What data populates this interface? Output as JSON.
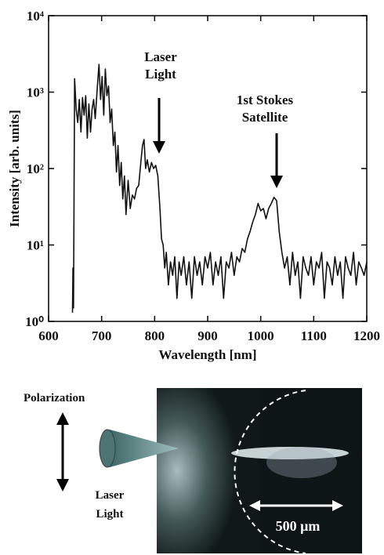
{
  "chart_data": {
    "type": "line",
    "x_label": "Wavelength [nm]",
    "y_label": "Intensity [arb. units]",
    "log_y": true,
    "xlim": [
      600,
      1200
    ],
    "xticks": [
      600,
      700,
      800,
      900,
      1000,
      1100,
      1200
    ],
    "ylim": [
      1,
      10000
    ],
    "yticks": [
      {
        "value": 1,
        "label": "10⁰"
      },
      {
        "value": 10,
        "label": "10¹"
      },
      {
        "value": 100,
        "label": "10²"
      },
      {
        "value": 1000,
        "label": "10³"
      },
      {
        "value": 10000,
        "label": "10⁴"
      }
    ],
    "annotations": [
      {
        "lines": [
          "Laser",
          "Light"
        ]
      },
      {
        "lines": [
          "1st Stokes",
          "Satellite"
        ]
      }
    ],
    "series": [
      {
        "color": "#111111",
        "x": [
          645,
          646,
          647,
          649,
          652,
          655,
          658,
          661,
          664,
          667,
          670,
          673,
          676,
          679,
          682,
          685,
          688,
          692,
          695,
          698,
          701,
          704,
          707,
          710,
          713,
          716,
          719,
          722,
          725,
          728,
          731,
          734,
          737,
          740,
          743,
          746,
          750,
          754,
          758,
          762,
          766,
          770,
          774,
          777,
          780,
          783,
          786,
          790,
          794,
          798,
          802,
          806,
          810,
          813,
          816,
          819,
          822,
          826,
          830,
          834,
          838,
          842,
          846,
          850,
          855,
          860,
          865,
          870,
          875,
          880,
          885,
          890,
          895,
          900,
          905,
          910,
          915,
          920,
          925,
          930,
          935,
          940,
          945,
          950,
          955,
          960,
          965,
          970,
          975,
          980,
          985,
          990,
          995,
          1000,
          1005,
          1010,
          1015,
          1020,
          1025,
          1030,
          1035,
          1040,
          1045,
          1050,
          1055,
          1060,
          1065,
          1070,
          1075,
          1080,
          1085,
          1090,
          1095,
          1100,
          1105,
          1110,
          1115,
          1120,
          1125,
          1130,
          1135,
          1140,
          1145,
          1150,
          1155,
          1160,
          1165,
          1170,
          1175,
          1180,
          1185,
          1190,
          1195,
          1200
        ],
        "values": [
          1.3,
          5,
          1.5,
          1500,
          600,
          400,
          800,
          300,
          850,
          500,
          900,
          250,
          700,
          300,
          600,
          800,
          450,
          1200,
          2300,
          800,
          1600,
          500,
          2000,
          900,
          1200,
          400,
          600,
          200,
          300,
          90,
          200,
          60,
          120,
          40,
          80,
          25,
          70,
          30,
          45,
          40,
          55,
          60,
          120,
          200,
          240,
          100,
          130,
          90,
          120,
          100,
          110,
          80,
          30,
          12,
          10,
          5,
          8,
          3,
          6,
          4,
          7,
          2,
          6,
          4,
          7,
          3,
          6,
          2,
          7,
          4,
          6,
          3,
          7,
          5,
          8,
          3,
          6,
          4,
          7,
          2,
          6,
          5,
          8,
          4,
          7,
          6,
          9,
          8,
          12,
          15,
          20,
          25,
          35,
          28,
          30,
          22,
          30,
          35,
          42,
          38,
          15,
          8,
          5,
          7,
          3,
          8,
          4,
          6,
          2,
          7,
          5,
          4,
          7,
          3,
          6,
          5,
          8,
          2,
          6,
          5,
          3,
          7,
          4,
          6,
          2,
          7,
          5,
          4,
          8,
          3,
          6,
          5,
          4,
          6
        ]
      }
    ]
  },
  "diagram": {
    "polarization": "Polarization",
    "laser_light": [
      "Laser",
      "Light"
    ],
    "scale_bar": "500 μm"
  }
}
